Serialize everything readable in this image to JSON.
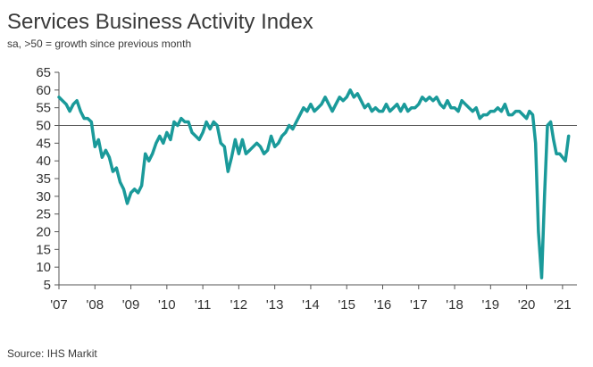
{
  "header": {
    "title": "Services Business Activity Index",
    "subtitle": "sa, >50 = growth since previous month"
  },
  "footer": {
    "source": "Source: IHS Markit"
  },
  "colors": {
    "line": "#1a9a9a",
    "axis": "#555555",
    "grid50": "#555555"
  },
  "chart_data": {
    "type": "line",
    "title": "Services Business Activity Index",
    "subtitle": "sa, >50 = growth since previous month",
    "xlabel": "",
    "ylabel": "",
    "ylim": [
      5,
      65
    ],
    "yticks": [
      5,
      10,
      15,
      20,
      25,
      30,
      35,
      40,
      45,
      50,
      55,
      60,
      65
    ],
    "xlim": [
      2007,
      2021.4
    ],
    "xtick_labels": [
      "'07",
      "'08",
      "'09",
      "'10",
      "'11",
      "'12",
      "'13",
      "'14",
      "'15",
      "'16",
      "'17",
      "'18",
      "'19",
      "'20",
      "'21"
    ],
    "xtick_positions": [
      2007,
      2008,
      2009,
      2010,
      2011,
      2012,
      2013,
      2014,
      2015,
      2016,
      2017,
      2018,
      2019,
      2020,
      2021
    ],
    "reference_line": 50,
    "grid": false,
    "legend": "none",
    "series": [
      {
        "x": [
          2007.0,
          2007.1,
          2007.2,
          2007.3,
          2007.4,
          2007.5,
          2007.6,
          2007.7,
          2007.8,
          2007.9,
          2008.0,
          2008.1,
          2008.2,
          2008.3,
          2008.4,
          2008.5,
          2008.6,
          2008.7,
          2008.8,
          2008.9,
          2009.0,
          2009.1,
          2009.2,
          2009.3,
          2009.4,
          2009.5,
          2009.6,
          2009.7,
          2009.8,
          2009.9,
          2010.0,
          2010.1,
          2010.2,
          2010.3,
          2010.4,
          2010.5,
          2010.6,
          2010.7,
          2010.8,
          2010.9,
          2011.0,
          2011.1,
          2011.2,
          2011.3,
          2011.4,
          2011.5,
          2011.6,
          2011.7,
          2011.8,
          2011.9,
          2012.0,
          2012.1,
          2012.2,
          2012.3,
          2012.4,
          2012.5,
          2012.6,
          2012.7,
          2012.8,
          2012.9,
          2013.0,
          2013.1,
          2013.2,
          2013.3,
          2013.4,
          2013.5,
          2013.6,
          2013.7,
          2013.8,
          2013.9,
          2014.0,
          2014.1,
          2014.2,
          2014.3,
          2014.4,
          2014.5,
          2014.6,
          2014.7,
          2014.8,
          2014.9,
          2015.0,
          2015.1,
          2015.2,
          2015.3,
          2015.4,
          2015.5,
          2015.6,
          2015.7,
          2015.8,
          2015.9,
          2016.0,
          2016.1,
          2016.2,
          2016.3,
          2016.4,
          2016.5,
          2016.6,
          2016.7,
          2016.8,
          2016.9,
          2017.0,
          2017.1,
          2017.2,
          2017.3,
          2017.4,
          2017.5,
          2017.6,
          2017.7,
          2017.8,
          2017.9,
          2018.0,
          2018.1,
          2018.2,
          2018.3,
          2018.4,
          2018.5,
          2018.6,
          2018.7,
          2018.8,
          2018.9,
          2019.0,
          2019.1,
          2019.2,
          2019.3,
          2019.4,
          2019.5,
          2019.6,
          2019.7,
          2019.8,
          2019.9,
          2020.0,
          2020.08,
          2020.17,
          2020.25,
          2020.33,
          2020.42,
          2020.5,
          2020.58,
          2020.67,
          2020.75,
          2020.83,
          2020.92,
          2021.0,
          2021.08,
          2021.17
        ],
        "y": [
          58,
          57,
          56,
          54,
          56,
          57,
          54,
          52,
          52,
          51,
          44,
          46,
          41,
          43,
          41,
          37,
          38,
          34,
          32,
          28,
          31,
          32,
          31,
          33,
          42,
          40,
          42,
          45,
          47,
          45,
          48,
          46,
          51,
          50,
          52,
          51,
          51,
          48,
          47,
          46,
          48,
          51,
          49,
          51,
          50,
          45,
          44,
          37,
          41,
          46,
          42,
          46,
          42,
          43,
          44,
          45,
          44,
          42,
          43,
          47,
          44,
          45,
          47,
          48,
          50,
          49,
          51,
          53,
          55,
          54,
          56,
          54,
          55,
          56,
          58,
          56,
          54,
          56,
          58,
          57,
          58,
          60,
          58,
          59,
          57,
          55,
          56,
          54,
          55,
          54,
          54,
          56,
          54,
          55,
          56,
          54,
          56,
          54,
          55,
          55,
          56,
          58,
          57,
          58,
          57,
          58,
          56,
          55,
          57,
          55,
          55,
          54,
          57,
          56,
          55,
          54,
          55,
          52,
          53,
          53,
          54,
          54,
          55,
          54,
          56,
          53,
          53,
          54,
          54,
          53,
          52,
          54,
          53,
          45,
          20,
          7,
          30,
          50,
          51,
          46,
          42,
          42,
          41,
          40,
          47
        ]
      }
    ]
  }
}
